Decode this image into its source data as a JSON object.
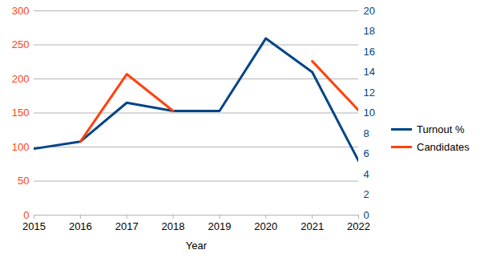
{
  "chart_data": {
    "type": "line",
    "x_label": "Year",
    "x": [
      2015,
      2016,
      2017,
      2018,
      2019,
      2020,
      2021,
      2022
    ],
    "xlim": [
      2015,
      2022
    ],
    "xticks": [
      2015,
      2016,
      2017,
      2018,
      2019,
      2020,
      2021,
      2022
    ],
    "ylim": [
      0,
      300
    ],
    "yticks": [
      0,
      50,
      100,
      150,
      200,
      250,
      300
    ],
    "y2lim": [
      0,
      20
    ],
    "y2ticks": [
      0,
      2,
      4,
      6,
      8,
      10,
      12,
      14,
      16,
      18,
      20
    ],
    "grid": true,
    "legend": "right",
    "series": [
      {
        "name": "Turnout %",
        "color": "#004586",
        "axis": "y2",
        "values": [
          6.5,
          7.2,
          11.0,
          10.2,
          10.2,
          17.3,
          14.0,
          5.3
        ]
      },
      {
        "name": "Candidates",
        "color": "#ff420e",
        "values": [
          null,
          108,
          207,
          153,
          null,
          null,
          226,
          154
        ]
      }
    ]
  }
}
